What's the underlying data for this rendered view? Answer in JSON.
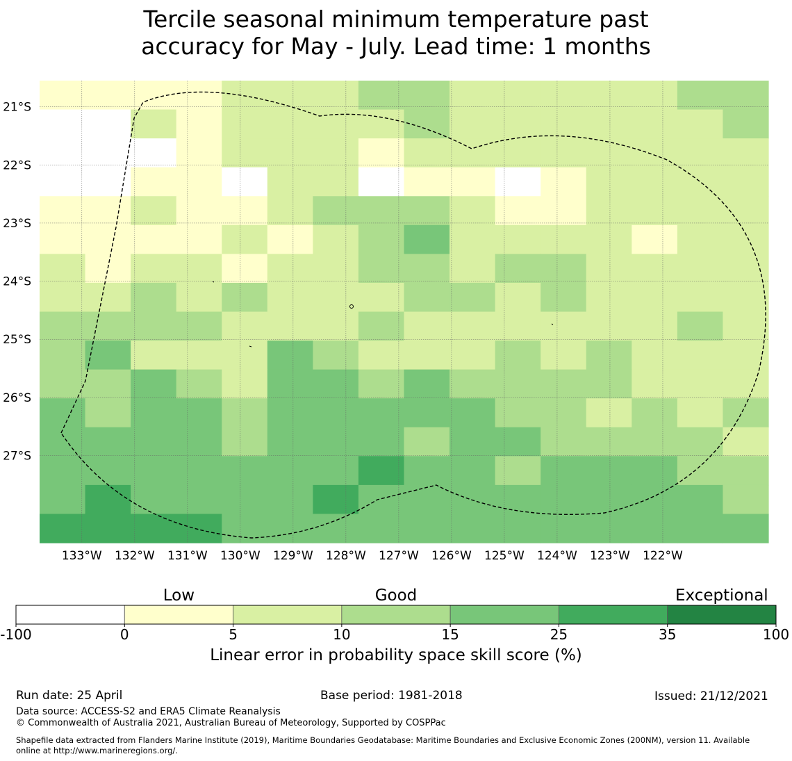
{
  "title_line1": "Tercile seasonal minimum temperature past",
  "title_line2": "accuracy for May - July. Lead time: 1 months",
  "map": {
    "lon_range": [
      -133.8,
      -120.0
    ],
    "lat_range": [
      -28.5,
      -20.55
    ],
    "lon_ticks": [
      "133°W",
      "132°W",
      "131°W",
      "130°W",
      "129°W",
      "128°W",
      "127°W",
      "126°W",
      "125°W",
      "124°W",
      "123°W",
      "122°W"
    ],
    "lat_ticks": [
      "21°S",
      "22°S",
      "23°S",
      "24°S",
      "25°S",
      "26°S",
      "27°S"
    ],
    "cell_classes": [
      [
        1,
        1,
        1,
        1,
        2,
        2,
        2,
        3,
        3,
        2,
        2,
        2,
        2,
        2,
        3,
        3
      ],
      [
        0,
        0,
        2,
        1,
        2,
        2,
        2,
        2,
        3,
        2,
        2,
        2,
        2,
        2,
        2,
        3
      ],
      [
        0,
        0,
        0,
        1,
        2,
        2,
        2,
        1,
        2,
        2,
        2,
        2,
        2,
        2,
        2,
        2
      ],
      [
        0,
        0,
        1,
        1,
        0,
        2,
        2,
        0,
        1,
        1,
        0,
        1,
        2,
        2,
        2,
        2
      ],
      [
        1,
        1,
        2,
        1,
        1,
        2,
        3,
        3,
        3,
        2,
        1,
        1,
        2,
        2,
        2,
        2
      ],
      [
        1,
        1,
        1,
        1,
        2,
        1,
        2,
        3,
        4,
        2,
        2,
        2,
        2,
        1,
        2,
        2
      ],
      [
        2,
        1,
        2,
        2,
        1,
        2,
        2,
        3,
        3,
        2,
        3,
        3,
        2,
        2,
        2,
        2
      ],
      [
        2,
        2,
        3,
        2,
        3,
        2,
        2,
        2,
        3,
        3,
        2,
        3,
        2,
        2,
        2,
        2
      ],
      [
        3,
        3,
        3,
        3,
        2,
        2,
        2,
        3,
        2,
        2,
        2,
        2,
        2,
        2,
        3,
        2
      ],
      [
        3,
        4,
        2,
        2,
        2,
        4,
        3,
        2,
        2,
        2,
        3,
        2,
        3,
        2,
        2,
        2
      ],
      [
        3,
        3,
        4,
        3,
        2,
        4,
        4,
        3,
        4,
        3,
        3,
        3,
        3,
        2,
        2,
        2
      ],
      [
        4,
        3,
        4,
        4,
        3,
        4,
        4,
        4,
        4,
        4,
        3,
        3,
        2,
        3,
        2,
        3
      ],
      [
        4,
        4,
        4,
        4,
        3,
        4,
        4,
        4,
        3,
        4,
        4,
        3,
        3,
        3,
        3,
        2
      ],
      [
        4,
        4,
        4,
        4,
        4,
        4,
        4,
        5,
        4,
        4,
        3,
        4,
        4,
        4,
        3,
        3
      ],
      [
        4,
        5,
        4,
        4,
        4,
        4,
        5,
        4,
        4,
        4,
        4,
        4,
        4,
        4,
        4,
        3
      ],
      [
        5,
        5,
        5,
        5,
        4,
        4,
        4,
        4,
        4,
        4,
        4,
        4,
        4,
        4,
        4,
        4
      ]
    ]
  },
  "colorbar": {
    "colors": [
      "#ffffff",
      "#ffffcc",
      "#d9f0a3",
      "#addd8e",
      "#78c679",
      "#41ab5d",
      "#238443"
    ],
    "bounds": [
      "-100",
      "0",
      "5",
      "10",
      "15",
      "25",
      "35",
      "100"
    ],
    "category_labels": [
      "Low",
      "Good",
      "Exceptional"
    ],
    "title": "Linear error in probability space skill score (%)"
  },
  "footer": {
    "run_date": "Run date: 25 April",
    "base_period": "Base period: 1981-2018",
    "issued": "Issued: 21/12/2021",
    "data_source": "Data source: ACCESS-S2 and ERA5 Climate Reanalysis",
    "copyright": "© Commonwealth of Australia 2021, Australian Bureau of Meteorology, Supported by COSPPac",
    "shapefile_line1": "Shapefile data extracted from Flanders Marine Institute (2019), Maritime Boundaries Geodatabase: Maritime Boundaries and Exclusive Economic Zones (200NM), version 11. Available",
    "shapefile_line2": "online at http://www.marineregions.org/."
  }
}
